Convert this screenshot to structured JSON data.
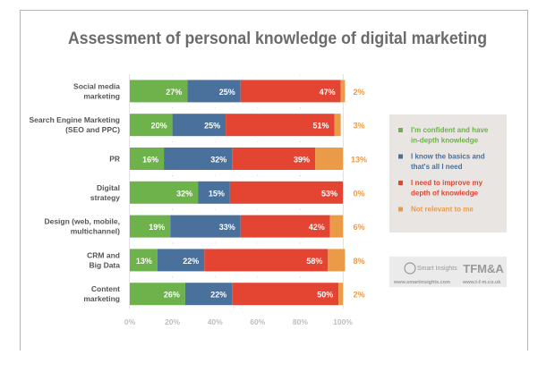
{
  "chart_data": {
    "type": "bar",
    "orientation": "horizontal",
    "stacked": true,
    "title": "Assessment of personal knowledge of digital marketing",
    "categories": [
      [
        "Social media",
        "marketing"
      ],
      [
        "Search Engine Marketing",
        "(SEO and PPC)"
      ],
      [
        "PR"
      ],
      [
        "Digital",
        "strategy"
      ],
      [
        "Design (web, mobile,",
        "multichannel)"
      ],
      [
        "CRM and",
        "Big Data"
      ],
      [
        "Content",
        "marketing"
      ]
    ],
    "series": [
      {
        "name": "I'm confident and have in-depth knowledge",
        "legend_lines": [
          "I'm confident and have",
          "in-depth knowledge"
        ],
        "color": "#6db24a",
        "values": [
          27,
          20,
          16,
          32,
          19,
          13,
          26
        ]
      },
      {
        "name": "I know the basics and that's all I need",
        "legend_lines": [
          "I know the basics and",
          "that's all I need"
        ],
        "color": "#4a709c",
        "values": [
          25,
          25,
          32,
          15,
          33,
          22,
          22
        ]
      },
      {
        "name": "I need to improve my depth of knowledge",
        "legend_lines": [
          "I need to improve my",
          "depth of knowledge"
        ],
        "color": "#e44532",
        "values": [
          47,
          51,
          39,
          53,
          42,
          58,
          50
        ]
      },
      {
        "name": "Not relevant to me",
        "legend_lines": [
          "Not relevant to me"
        ],
        "color": "#eb9b48",
        "values": [
          2,
          3,
          13,
          0,
          6,
          8,
          2
        ]
      }
    ],
    "xlim": [
      0,
      100
    ],
    "xticks": [
      "0%",
      "20%",
      "40%",
      "60%",
      "80%",
      "100%"
    ],
    "grid": true,
    "legend_placement": "right"
  },
  "branding": {
    "logo1": "Smart Insights",
    "logo1_url": "www.smartinsights.com",
    "logo2": "TFM&A",
    "logo2_url": "www.t-f-m.co.uk"
  }
}
